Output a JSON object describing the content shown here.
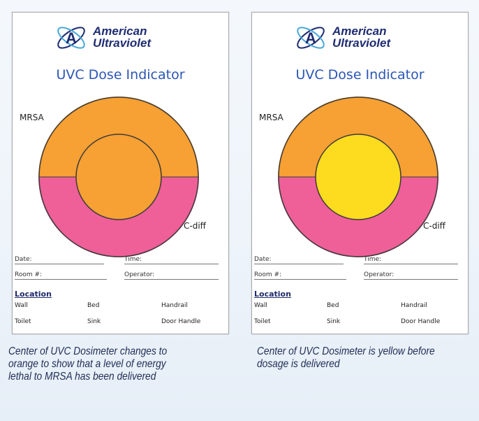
{
  "cards": [
    {
      "brand_line1": "American",
      "brand_line2": "Ultraviolet",
      "title": "UVC Dose Indicator",
      "label_top": "MRSA",
      "label_bottom": "C-diff",
      "date_label": "Date:",
      "room_label": "Room #:",
      "time_label": "Time:",
      "operator_label": "Operator:",
      "location_heading": "Location",
      "locations": [
        "Wall",
        "Bed",
        "Handrail",
        "Toilet",
        "Sink",
        "Door Handle"
      ],
      "center_state": "orange"
    },
    {
      "brand_line1": "American",
      "brand_line2": "Ultraviolet",
      "title": "UVC Dose Indicator",
      "label_top": "MRSA",
      "label_bottom": "C-diff",
      "date_label": "Date:",
      "room_label": "Room #:",
      "time_label": "Time:",
      "operator_label": "Operator:",
      "location_heading": "Location",
      "locations": [
        "Wall",
        "Bed",
        "Handrail",
        "Toilet",
        "Sink",
        "Door Handle"
      ],
      "center_state": "yellow"
    }
  ],
  "captions": {
    "left": [
      "Center of UVC Dosimeter changes to",
      "orange to show that a level of energy",
      "lethal to MRSA has been delivered"
    ],
    "right": [
      "Center of UVC Dosimeter is yellow before",
      "dosage is delivered"
    ]
  },
  "colors": {
    "orange": "#f7a033",
    "pink": "#ef5f98",
    "yellow": "#fddb1e",
    "brand_blue": "#1f2d72",
    "title_blue": "#2b56b6"
  }
}
